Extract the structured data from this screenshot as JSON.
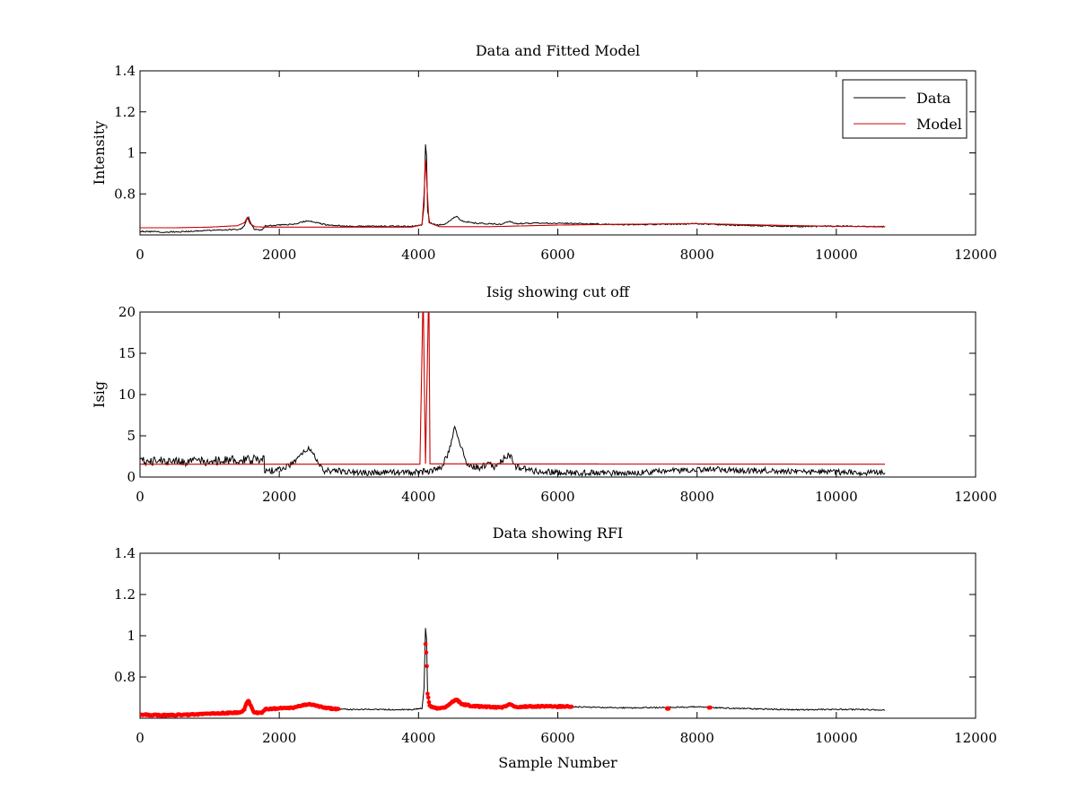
{
  "chart_data": [
    {
      "type": "line",
      "title": "Data and Fitted Model",
      "xlabel": "",
      "ylabel": "Intensity",
      "xlim": [
        0,
        12000
      ],
      "ylim": [
        0.6,
        1.4
      ],
      "xticks": [
        0,
        2000,
        4000,
        6000,
        8000,
        10000,
        12000
      ],
      "yticks": [
        0.8,
        1,
        1.2,
        1.4
      ],
      "legend_position": "top-right",
      "series": [
        {
          "name": "Data",
          "color": "#000000",
          "points": [
            [
              0,
              0.618
            ],
            [
              300,
              0.614
            ],
            [
              700,
              0.617
            ],
            [
              1000,
              0.622
            ],
            [
              1300,
              0.626
            ],
            [
              1450,
              0.628
            ],
            [
              1500,
              0.645
            ],
            [
              1530,
              0.675
            ],
            [
              1560,
              0.685
            ],
            [
              1590,
              0.66
            ],
            [
              1640,
              0.628
            ],
            [
              1700,
              0.625
            ],
            [
              1750,
              0.625
            ],
            [
              1800,
              0.644
            ],
            [
              2000,
              0.648
            ],
            [
              2200,
              0.652
            ],
            [
              2350,
              0.665
            ],
            [
              2450,
              0.668
            ],
            [
              2550,
              0.658
            ],
            [
              2700,
              0.648
            ],
            [
              3000,
              0.643
            ],
            [
              3500,
              0.642
            ],
            [
              3900,
              0.642
            ],
            [
              4050,
              0.648
            ],
            [
              4080,
              0.75
            ],
            [
              4100,
              1.04
            ],
            [
              4115,
              0.98
            ],
            [
              4130,
              0.72
            ],
            [
              4160,
              0.66
            ],
            [
              4250,
              0.648
            ],
            [
              4400,
              0.655
            ],
            [
              4500,
              0.683
            ],
            [
              4550,
              0.69
            ],
            [
              4620,
              0.668
            ],
            [
              4800,
              0.658
            ],
            [
              5000,
              0.655
            ],
            [
              5200,
              0.652
            ],
            [
              5300,
              0.668
            ],
            [
              5400,
              0.655
            ],
            [
              5800,
              0.658
            ],
            [
              6200,
              0.656
            ],
            [
              7000,
              0.65
            ],
            [
              7500,
              0.652
            ],
            [
              8000,
              0.655
            ],
            [
              8500,
              0.648
            ],
            [
              9000,
              0.644
            ],
            [
              9500,
              0.641
            ],
            [
              10000,
              0.643
            ],
            [
              10400,
              0.642
            ],
            [
              10700,
              0.64
            ]
          ]
        },
        {
          "name": "Model",
          "color": "#cc0000",
          "points": [
            [
              0,
              0.635
            ],
            [
              500,
              0.635
            ],
            [
              1000,
              0.638
            ],
            [
              1400,
              0.645
            ],
            [
              1500,
              0.66
            ],
            [
              1540,
              0.685
            ],
            [
              1580,
              0.655
            ],
            [
              1650,
              0.64
            ],
            [
              1800,
              0.638
            ],
            [
              2000,
              0.638
            ],
            [
              3000,
              0.638
            ],
            [
              3900,
              0.638
            ],
            [
              4050,
              0.65
            ],
            [
              4080,
              0.8
            ],
            [
              4100,
              0.97
            ],
            [
              4120,
              0.85
            ],
            [
              4150,
              0.66
            ],
            [
              4300,
              0.64
            ],
            [
              5000,
              0.64
            ],
            [
              6000,
              0.648
            ],
            [
              7000,
              0.652
            ],
            [
              8000,
              0.655
            ],
            [
              9000,
              0.648
            ],
            [
              10000,
              0.642
            ],
            [
              10700,
              0.64
            ]
          ]
        }
      ]
    },
    {
      "type": "line",
      "title": "Isig showing cut off",
      "xlabel": "",
      "ylabel": "Isig",
      "xlim": [
        0,
        12000
      ],
      "ylim": [
        0,
        20
      ],
      "xticks": [
        0,
        2000,
        4000,
        6000,
        8000,
        10000,
        12000
      ],
      "yticks": [
        0,
        5,
        10,
        15,
        20
      ],
      "series": [
        {
          "name": "Isig",
          "color": "#000000",
          "points": [
            [
              0,
              2.0
            ],
            [
              400,
              1.9
            ],
            [
              800,
              1.9
            ],
            [
              1200,
              2.0
            ],
            [
              1600,
              2.1
            ],
            [
              1780,
              2.2
            ],
            [
              1790,
              0.7
            ],
            [
              2000,
              0.9
            ],
            [
              2200,
              1.6
            ],
            [
              2350,
              3.0
            ],
            [
              2420,
              3.5
            ],
            [
              2500,
              2.6
            ],
            [
              2650,
              0.8
            ],
            [
              3000,
              0.6
            ],
            [
              3500,
              0.5
            ],
            [
              3900,
              0.5
            ],
            [
              4000,
              0.6
            ],
            [
              4200,
              0.7
            ],
            [
              4350,
              1.4
            ],
            [
              4450,
              3.5
            ],
            [
              4520,
              6.2
            ],
            [
              4580,
              4.5
            ],
            [
              4700,
              1.5
            ],
            [
              4900,
              1.1
            ],
            [
              5000,
              1.8
            ],
            [
              5100,
              1.2
            ],
            [
              5250,
              2.5
            ],
            [
              5300,
              2.8
            ],
            [
              5400,
              1.2
            ],
            [
              5600,
              0.8
            ],
            [
              6000,
              0.5
            ],
            [
              7000,
              0.5
            ],
            [
              7500,
              0.7
            ],
            [
              8000,
              0.9
            ],
            [
              8200,
              1.0
            ],
            [
              8500,
              0.8
            ],
            [
              9000,
              0.8
            ],
            [
              9500,
              0.6
            ],
            [
              10000,
              0.6
            ],
            [
              10700,
              0.5
            ]
          ]
        },
        {
          "name": "Cut off",
          "color": "#cc0000",
          "points": [
            [
              0,
              1.55
            ],
            [
              1780,
              1.55
            ],
            [
              3900,
              1.55
            ],
            [
              4020,
              1.55
            ],
            [
              4060,
              20
            ],
            [
              4070,
              20
            ],
            [
              4100,
              1.6
            ],
            [
              4140,
              20
            ],
            [
              4150,
              20
            ],
            [
              4165,
              1.6
            ],
            [
              10700,
              1.55
            ]
          ]
        }
      ]
    },
    {
      "type": "scatter",
      "title": "Data showing RFI",
      "xlabel": "Sample Number",
      "ylabel": "",
      "xlim": [
        0,
        12000
      ],
      "ylim": [
        0.6,
        1.4
      ],
      "xticks": [
        0,
        2000,
        4000,
        6000,
        8000,
        10000,
        12000
      ],
      "yticks": [
        0.8,
        1,
        1.2,
        1.4
      ],
      "series": [
        {
          "name": "Data",
          "color": "#000000",
          "points": [
            [
              0,
              0.618
            ],
            [
              300,
              0.614
            ],
            [
              700,
              0.617
            ],
            [
              1000,
              0.622
            ],
            [
              1300,
              0.626
            ],
            [
              1450,
              0.628
            ],
            [
              1500,
              0.645
            ],
            [
              1530,
              0.675
            ],
            [
              1560,
              0.685
            ],
            [
              1590,
              0.66
            ],
            [
              1640,
              0.628
            ],
            [
              1700,
              0.625
            ],
            [
              1750,
              0.625
            ],
            [
              1800,
              0.644
            ],
            [
              2000,
              0.648
            ],
            [
              2200,
              0.652
            ],
            [
              2350,
              0.665
            ],
            [
              2450,
              0.668
            ],
            [
              2550,
              0.658
            ],
            [
              2700,
              0.648
            ],
            [
              3000,
              0.643
            ],
            [
              3500,
              0.642
            ],
            [
              3900,
              0.642
            ],
            [
              4050,
              0.648
            ],
            [
              4080,
              0.75
            ],
            [
              4100,
              1.04
            ],
            [
              4115,
              0.98
            ],
            [
              4130,
              0.72
            ],
            [
              4160,
              0.66
            ],
            [
              4250,
              0.648
            ],
            [
              4400,
              0.655
            ],
            [
              4500,
              0.683
            ],
            [
              4550,
              0.69
            ],
            [
              4620,
              0.668
            ],
            [
              4800,
              0.658
            ],
            [
              5000,
              0.655
            ],
            [
              5200,
              0.652
            ],
            [
              5300,
              0.668
            ],
            [
              5400,
              0.655
            ],
            [
              5800,
              0.658
            ],
            [
              6200,
              0.656
            ],
            [
              7000,
              0.65
            ],
            [
              7500,
              0.652
            ],
            [
              8000,
              0.655
            ],
            [
              8500,
              0.648
            ],
            [
              9000,
              0.644
            ],
            [
              9500,
              0.641
            ],
            [
              10000,
              0.643
            ],
            [
              10400,
              0.642
            ],
            [
              10700,
              0.64
            ]
          ]
        },
        {
          "name": "RFI",
          "color": "#ff0000",
          "segments": [
            [
              [
                0,
                0.618
              ],
              [
                300,
                0.614
              ],
              [
                700,
                0.617
              ],
              [
                1000,
                0.622
              ],
              [
                1300,
                0.626
              ],
              [
                1450,
                0.628
              ],
              [
                1500,
                0.645
              ],
              [
                1530,
                0.675
              ],
              [
                1560,
                0.685
              ],
              [
                1590,
                0.66
              ],
              [
                1640,
                0.628
              ],
              [
                1700,
                0.625
              ],
              [
                1750,
                0.625
              ],
              [
                1800,
                0.644
              ],
              [
                2000,
                0.648
              ],
              [
                2200,
                0.652
              ],
              [
                2350,
                0.665
              ],
              [
                2450,
                0.668
              ],
              [
                2550,
                0.658
              ],
              [
                2700,
                0.648
              ],
              [
                2850,
                0.645
              ]
            ],
            [
              [
                4100,
                0.96
              ],
              [
                4110,
                0.92
              ],
              [
                4120,
                0.85
              ],
              [
                4130,
                0.72
              ],
              [
                4160,
                0.66
              ],
              [
                4250,
                0.648
              ],
              [
                4400,
                0.655
              ],
              [
                4500,
                0.683
              ],
              [
                4550,
                0.69
              ],
              [
                4620,
                0.668
              ],
              [
                4800,
                0.658
              ],
              [
                5000,
                0.655
              ],
              [
                5200,
                0.652
              ],
              [
                5300,
                0.668
              ],
              [
                5400,
                0.655
              ],
              [
                5800,
                0.658
              ],
              [
                6200,
                0.656
              ]
            ],
            [
              [
                7570,
                0.646
              ],
              [
                7590,
                0.646
              ]
            ],
            [
              [
                8170,
                0.652
              ],
              [
                8190,
                0.652
              ]
            ]
          ]
        }
      ]
    }
  ]
}
